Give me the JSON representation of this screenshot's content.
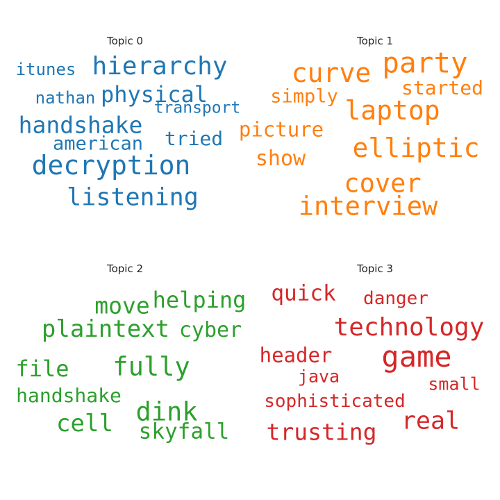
{
  "chart_data": [
    {
      "type": "wordcloud",
      "title": "Topic 0",
      "color": "#1f77b4",
      "words": [
        "hierarchy",
        "itunes",
        "physical",
        "nathan",
        "transport",
        "handshake",
        "tried",
        "american",
        "decryption",
        "listening"
      ]
    },
    {
      "type": "wordcloud",
      "title": "Topic 1",
      "color": "#ff7f0e",
      "words": [
        "party",
        "curve",
        "started",
        "simply",
        "laptop",
        "picture",
        "elliptic",
        "show",
        "cover",
        "interview"
      ]
    },
    {
      "type": "wordcloud",
      "title": "Topic 2",
      "color": "#2ca02c",
      "words": [
        "helping",
        "move",
        "plaintext",
        "cyber",
        "file",
        "fully",
        "handshake",
        "dink",
        "cell",
        "skyfall"
      ]
    },
    {
      "type": "wordcloud",
      "title": "Topic 3",
      "color": "#d62728",
      "words": [
        "quick",
        "danger",
        "technology",
        "header",
        "game",
        "java",
        "small",
        "sophisticated",
        "real",
        "trusting"
      ]
    }
  ]
}
